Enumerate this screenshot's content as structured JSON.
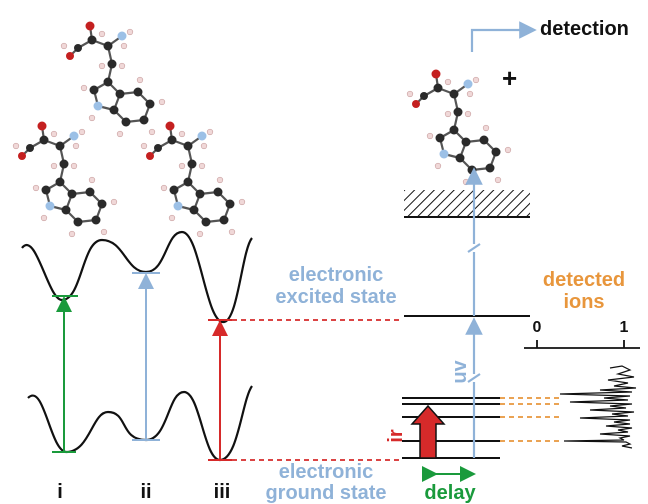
{
  "labels": {
    "detection": "detection",
    "plus": "+",
    "excited_state": [
      "electronic",
      "excited state"
    ],
    "ground_state": [
      "electronic",
      "ground state"
    ],
    "detected_ions": [
      "detected",
      "ions"
    ],
    "axis_min": "0",
    "axis_max": "1",
    "uv": "uv",
    "ir": "ir",
    "delay": "delay",
    "conformer_i": "i",
    "conformer_ii": "ii",
    "conformer_iii": "iii"
  },
  "colors": {
    "green": "#1a9a3c",
    "blue": "#8fb2d8",
    "red": "#d62a2a",
    "orange": "#e8963c",
    "black": "#111111",
    "atom_carbon": "#2a2a2a",
    "atom_oxygen": "#c42020",
    "atom_nitrogen": "#9cc0e6",
    "atom_hydrogen": "#f0d8d8"
  },
  "icons": [
    "molecule-conformer-top",
    "molecule-conformer-left",
    "molecule-conformer-mid",
    "molecule-ion",
    "hatched-continuum",
    "ir-thick-arrow"
  ]
}
